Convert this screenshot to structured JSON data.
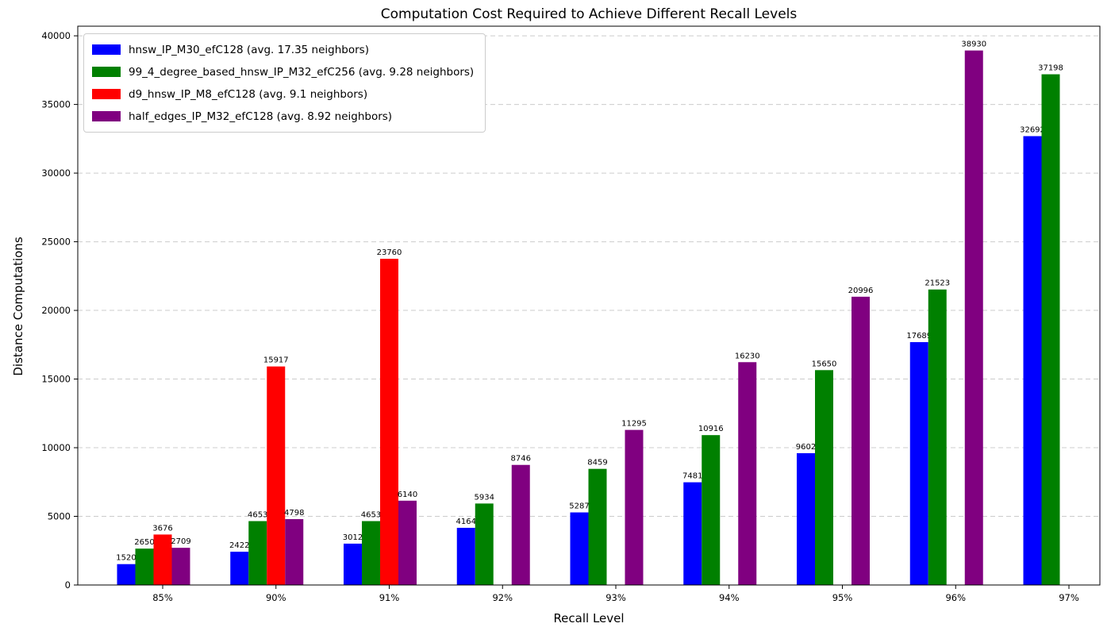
{
  "chart_data": {
    "type": "bar",
    "title": "Computation Cost Required to Achieve Different Recall Levels",
    "xlabel": "Recall Level",
    "ylabel": "Distance Computations",
    "categories": [
      "85%",
      "90%",
      "91%",
      "92%",
      "93%",
      "94%",
      "95%",
      "96%",
      "97%"
    ],
    "series": [
      {
        "name": "hnsw_IP_M30_efC128 (avg. 17.35 neighbors)",
        "color": "#0000ff",
        "values": [
          1520,
          2422,
          3012,
          4164,
          5287,
          7481,
          9602,
          17689,
          32692
        ]
      },
      {
        "name": "99_4_degree_based_hnsw_IP_M32_efC256 (avg. 9.28 neighbors)",
        "color": "#008000",
        "values": [
          2650,
          4653,
          4653,
          5934,
          8459,
          10916,
          15650,
          21523,
          37198
        ]
      },
      {
        "name": "d9_hnsw_IP_M8_efC128 (avg. 9.1 neighbors)",
        "color": "#ff0000",
        "values": [
          3676,
          15917,
          23760,
          null,
          null,
          null,
          null,
          null,
          null
        ]
      },
      {
        "name": "half_edges_IP_M32_efC128 (avg. 8.92 neighbors)",
        "color": "#800080",
        "values": [
          2709,
          4798,
          6140,
          8746,
          11295,
          16230,
          20996,
          38930,
          null
        ]
      }
    ],
    "yticks": [
      0,
      5000,
      10000,
      15000,
      20000,
      25000,
      30000,
      35000,
      40000
    ],
    "ylim": [
      0,
      40700
    ],
    "grid": true,
    "grid_axis": "y",
    "grid_style": "dashed",
    "legend_position": "upper left",
    "bar_value_labels": true
  }
}
